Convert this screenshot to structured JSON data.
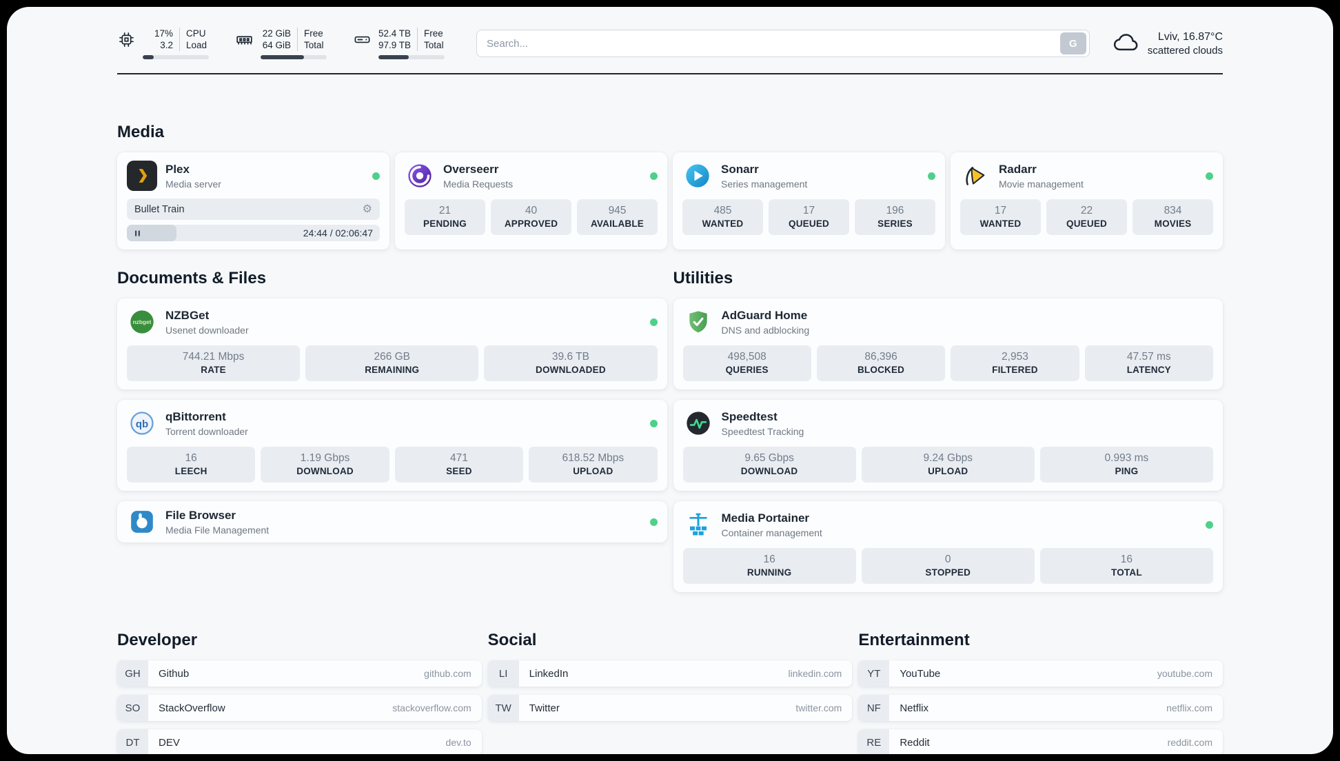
{
  "topbar": {
    "cpu": {
      "values": [
        "17%",
        "3.2"
      ],
      "labels": [
        "CPU",
        "Load"
      ],
      "bar_percent": 17
    },
    "memory": {
      "values": [
        "22 GiB",
        "64 GiB"
      ],
      "labels": [
        "Free",
        "Total"
      ],
      "bar_percent": 66
    },
    "disk": {
      "values": [
        "52.4 TB",
        "97.9 TB"
      ],
      "labels": [
        "Free",
        "Total"
      ],
      "bar_percent": 46
    },
    "search": {
      "placeholder": "Search...",
      "button_label": "G"
    },
    "weather": {
      "location": "Lviv, 16.87°C",
      "condition": "scattered clouds"
    }
  },
  "media": {
    "title": "Media",
    "plex": {
      "name": "Plex",
      "subtitle": "Media server",
      "now_playing": "Bullet Train",
      "time": "24:44 / 02:06:47",
      "progress_percent": 19.5
    },
    "overseerr": {
      "name": "Overseerr",
      "subtitle": "Media Requests",
      "stats": [
        {
          "value": "21",
          "label": "PENDING"
        },
        {
          "value": "40",
          "label": "APPROVED"
        },
        {
          "value": "945",
          "label": "AVAILABLE"
        }
      ]
    },
    "sonarr": {
      "name": "Sonarr",
      "subtitle": "Series management",
      "stats": [
        {
          "value": "485",
          "label": "WANTED"
        },
        {
          "value": "17",
          "label": "QUEUED"
        },
        {
          "value": "196",
          "label": "SERIES"
        }
      ]
    },
    "radarr": {
      "name": "Radarr",
      "subtitle": "Movie management",
      "stats": [
        {
          "value": "17",
          "label": "WANTED"
        },
        {
          "value": "22",
          "label": "QUEUED"
        },
        {
          "value": "834",
          "label": "MOVIES"
        }
      ]
    }
  },
  "documents": {
    "title": "Documents & Files",
    "nzbget": {
      "name": "NZBGet",
      "subtitle": "Usenet downloader",
      "stats": [
        {
          "value": "744.21 Mbps",
          "label": "RATE"
        },
        {
          "value": "266 GB",
          "label": "REMAINING"
        },
        {
          "value": "39.6 TB",
          "label": "DOWNLOADED"
        }
      ]
    },
    "qbittorrent": {
      "name": "qBittorrent",
      "subtitle": "Torrent downloader",
      "stats": [
        {
          "value": "16",
          "label": "LEECH"
        },
        {
          "value": "1.19 Gbps",
          "label": "DOWNLOAD"
        },
        {
          "value": "471",
          "label": "SEED"
        },
        {
          "value": "618.52 Mbps",
          "label": "UPLOAD"
        }
      ]
    },
    "filebrowser": {
      "name": "File Browser",
      "subtitle": "Media File Management"
    }
  },
  "utilities": {
    "title": "Utilities",
    "adguard": {
      "name": "AdGuard Home",
      "subtitle": "DNS and adblocking",
      "stats": [
        {
          "value": "498,508",
          "label": "QUERIES"
        },
        {
          "value": "86,396",
          "label": "BLOCKED"
        },
        {
          "value": "2,953",
          "label": "FILTERED"
        },
        {
          "value": "47.57 ms",
          "label": "LATENCY"
        }
      ]
    },
    "speedtest": {
      "name": "Speedtest",
      "subtitle": "Speedtest Tracking",
      "stats": [
        {
          "value": "9.65 Gbps",
          "label": "DOWNLOAD"
        },
        {
          "value": "9.24 Gbps",
          "label": "UPLOAD"
        },
        {
          "value": "0.993 ms",
          "label": "PING"
        }
      ]
    },
    "portainer": {
      "name": "Media Portainer",
      "subtitle": "Container management",
      "stats": [
        {
          "value": "16",
          "label": "RUNNING"
        },
        {
          "value": "0",
          "label": "STOPPED"
        },
        {
          "value": "16",
          "label": "TOTAL"
        }
      ]
    }
  },
  "bookmarks": {
    "developer": {
      "title": "Developer",
      "links": [
        {
          "abbr": "GH",
          "name": "Github",
          "url": "github.com"
        },
        {
          "abbr": "SO",
          "name": "StackOverflow",
          "url": "stackoverflow.com"
        },
        {
          "abbr": "DT",
          "name": "DEV",
          "url": "dev.to"
        }
      ]
    },
    "social": {
      "title": "Social",
      "links": [
        {
          "abbr": "LI",
          "name": "LinkedIn",
          "url": "linkedin.com"
        },
        {
          "abbr": "TW",
          "name": "Twitter",
          "url": "twitter.com"
        }
      ]
    },
    "entertainment": {
      "title": "Entertainment",
      "links": [
        {
          "abbr": "YT",
          "name": "YouTube",
          "url": "youtube.com"
        },
        {
          "abbr": "NF",
          "name": "Netflix",
          "url": "netflix.com"
        },
        {
          "abbr": "RE",
          "name": "Reddit",
          "url": "reddit.com"
        }
      ]
    }
  },
  "colors": {
    "status_online": "#4fd08a",
    "plex_yellow": "#e5a00d",
    "sonarr_blue": "#2fa8dd",
    "radarr_yellow": "#f5c22b",
    "overseerr_purple": "#6d4bc7",
    "nzbget_green": "#388e3c",
    "qbittorrent_blue": "#2e6db4",
    "filebrowser_blue": "#2f89c9",
    "adguard_green": "#5cab64",
    "speedtest_green": "#40d98e",
    "portainer_blue": "#1ba2dc",
    "bar_fill": "#39424e"
  }
}
